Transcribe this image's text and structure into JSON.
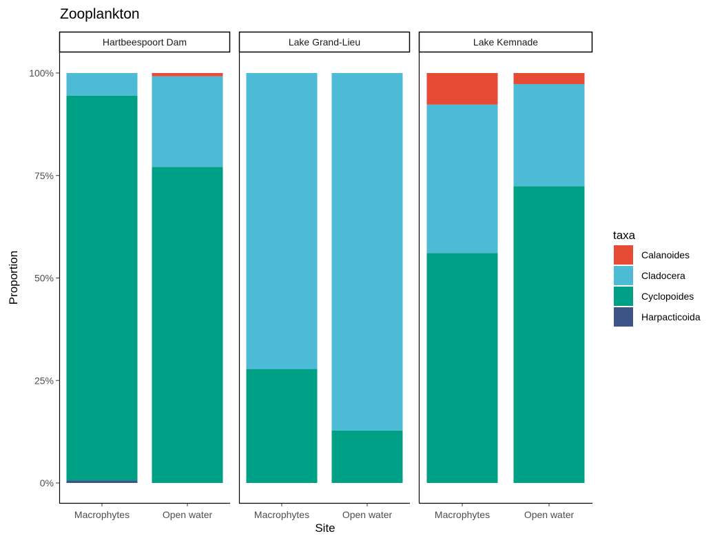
{
  "chart_data": {
    "type": "bar",
    "stacked": true,
    "title": "Zooplankton",
    "xlabel": "Site",
    "ylabel": "Proportion",
    "ylim": [
      0,
      1
    ],
    "yticks": [
      {
        "value": 0,
        "label": "0%"
      },
      {
        "value": 0.25,
        "label": "25%"
      },
      {
        "value": 0.5,
        "label": "50%"
      },
      {
        "value": 0.75,
        "label": "75%"
      },
      {
        "value": 1,
        "label": "100%"
      }
    ],
    "categories": [
      "Macrophytes",
      "Open water"
    ],
    "legend": {
      "title": "taxa",
      "position": "right",
      "entries": [
        {
          "name": "Calanoides",
          "color": "#E64B35"
        },
        {
          "name": "Cladocera",
          "color": "#4DBBD5"
        },
        {
          "name": "Cyclopoides",
          "color": "#00A087"
        },
        {
          "name": "Harpacticoida",
          "color": "#3C5488"
        }
      ]
    },
    "stack_order_bottom_to_top": [
      "Harpacticoida",
      "Cyclopoides",
      "Cladocera",
      "Calanoides"
    ],
    "facets": [
      {
        "name": "Hartbeespoort Dam",
        "bars": [
          {
            "category": "Macrophytes",
            "values": {
              "Harpacticoida": 0.006,
              "Cyclopoides": 0.939,
              "Cladocera": 0.055,
              "Calanoides": 0.0
            }
          },
          {
            "category": "Open water",
            "values": {
              "Harpacticoida": 0.0,
              "Cyclopoides": 0.771,
              "Cladocera": 0.221,
              "Calanoides": 0.008
            }
          }
        ]
      },
      {
        "name": "Lake Grand-Lieu",
        "bars": [
          {
            "category": "Macrophytes",
            "values": {
              "Harpacticoida": 0.0,
              "Cyclopoides": 0.278,
              "Cladocera": 0.722,
              "Calanoides": 0.0
            }
          },
          {
            "category": "Open water",
            "values": {
              "Harpacticoida": 0.0,
              "Cyclopoides": 0.128,
              "Cladocera": 0.872,
              "Calanoides": 0.0
            }
          }
        ]
      },
      {
        "name": "Lake Kemnade",
        "bars": [
          {
            "category": "Macrophytes",
            "values": {
              "Harpacticoida": 0.0,
              "Cyclopoides": 0.561,
              "Cladocera": 0.362,
              "Calanoides": 0.077
            }
          },
          {
            "category": "Open water",
            "values": {
              "Harpacticoida": 0.0,
              "Cyclopoides": 0.724,
              "Cladocera": 0.249,
              "Calanoides": 0.027
            }
          }
        ]
      }
    ]
  }
}
